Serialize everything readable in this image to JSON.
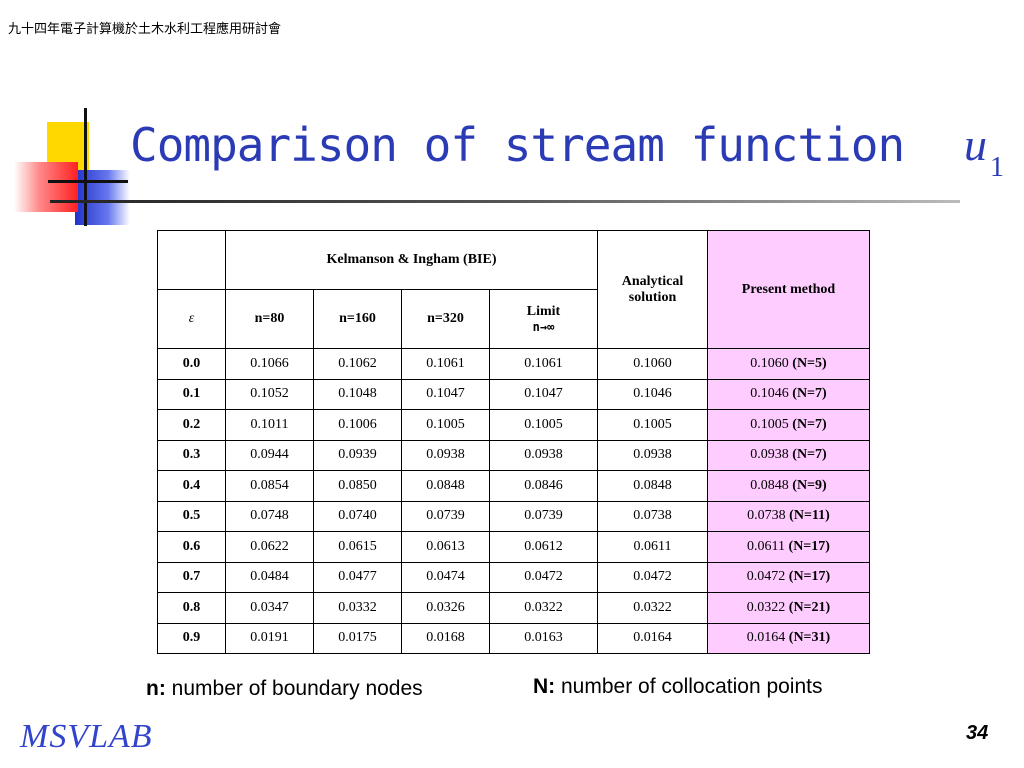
{
  "header": {
    "conference": "九十四年電子計算機於土木水利工程應用研討會"
  },
  "title": {
    "text": "Comparison of stream function ",
    "variable": "u",
    "subscript": "1"
  },
  "table": {
    "group_header": "Kelmanson & Ingham (BIE)",
    "analytical_header": "Analytical solution",
    "present_header": "Present method",
    "eps_header": "ε",
    "columns": [
      "n=80",
      "n=160",
      "n=320"
    ],
    "limit_line1": "Limit",
    "limit_line2": "n→∞",
    "rows": [
      {
        "eps": "0.0",
        "vals": [
          "0.1066",
          "0.1062",
          "0.1061",
          "0.1061",
          "0.1060"
        ],
        "pm": "0.1060",
        "N": "(N=5)"
      },
      {
        "eps": "0.1",
        "vals": [
          "0.1052",
          "0.1048",
          "0.1047",
          "0.1047",
          "0.1046"
        ],
        "pm": "0.1046",
        "N": "(N=7)"
      },
      {
        "eps": "0.2",
        "vals": [
          "0.1011",
          "0.1006",
          "0.1005",
          "0.1005",
          "0.1005"
        ],
        "pm": "0.1005",
        "N": "(N=7)"
      },
      {
        "eps": "0.3",
        "vals": [
          "0.0944",
          "0.0939",
          "0.0938",
          "0.0938",
          "0.0938"
        ],
        "pm": "0.0938",
        "N": "(N=7)"
      },
      {
        "eps": "0.4",
        "vals": [
          "0.0854",
          "0.0850",
          "0.0848",
          "0.0846",
          "0.0848"
        ],
        "pm": "0.0848",
        "N": "(N=9)"
      },
      {
        "eps": "0.5",
        "vals": [
          "0.0748",
          "0.0740",
          "0.0739",
          "0.0739",
          "0.0738"
        ],
        "pm": "0.0738",
        "N": "(N=11)"
      },
      {
        "eps": "0.6",
        "vals": [
          "0.0622",
          "0.0615",
          "0.0613",
          "0.0612",
          "0.0611"
        ],
        "pm": "0.0611",
        "N": "(N=17)"
      },
      {
        "eps": "0.7",
        "vals": [
          "0.0484",
          "0.0477",
          "0.0474",
          "0.0472",
          "0.0472"
        ],
        "pm": "0.0472",
        "N": "(N=17)"
      },
      {
        "eps": "0.8",
        "vals": [
          "0.0347",
          "0.0332",
          "0.0326",
          "0.0322",
          "0.0322"
        ],
        "pm": "0.0322",
        "N": "(N=21)"
      },
      {
        "eps": "0.9",
        "vals": [
          "0.0191",
          "0.0175",
          "0.0168",
          "0.0163",
          "0.0164"
        ],
        "pm": "0.0164",
        "N": "(N=31)"
      }
    ]
  },
  "notes": {
    "n_key": "n:",
    "n_text": " number of boundary nodes",
    "N_key": "N:",
    "N_text": " number of collocation points"
  },
  "footer": {
    "logo": "MSVLAB",
    "page": "34"
  },
  "colors": {
    "title": "#2a3bb5",
    "present_bg": "#ffccff"
  }
}
